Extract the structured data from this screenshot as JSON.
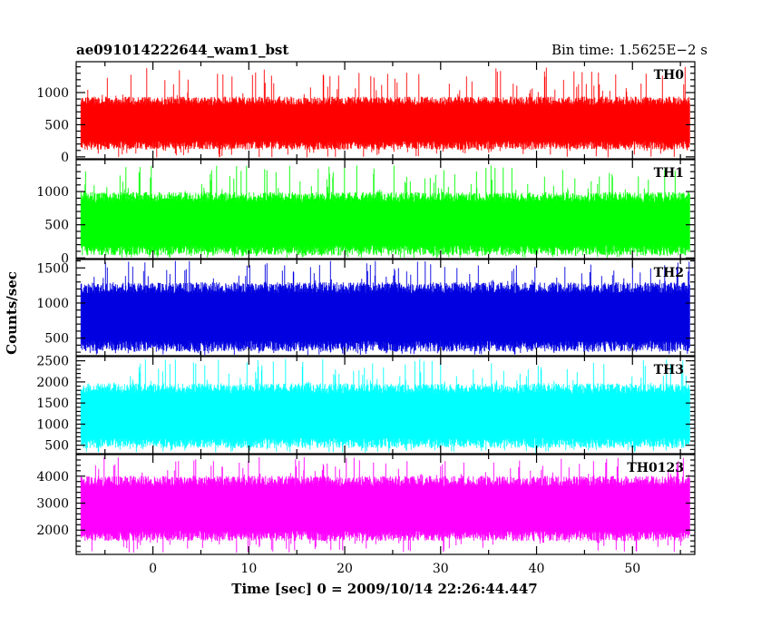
{
  "chart_data": {
    "type": "line",
    "title_left": "ae091014222644_wam1_bst",
    "title_right": "Bin time: 1.5625E−2 s",
    "xlabel": "Time [sec] 0 = 2009/10/14 22:26:44.447",
    "ylabel": "Counts/sec",
    "xlim": [
      -8,
      56.5
    ],
    "x_ticks": [
      0,
      10,
      20,
      30,
      40,
      50
    ],
    "data_x_range": [
      -7.5,
      56
    ],
    "grid": false,
    "panels": [
      {
        "name": "TH0",
        "color": "#ff0000",
        "ylim": [
          -30,
          1480
        ],
        "y_ticks": [
          0,
          500,
          1000
        ],
        "typical_range": [
          150,
          900
        ],
        "peak_max": 1400
      },
      {
        "name": "TH1",
        "color": "#00ff00",
        "ylim": [
          -10,
          1480
        ],
        "y_ticks": [
          0,
          500,
          1000
        ],
        "typical_range": [
          80,
          950
        ],
        "peak_max": 1400
      },
      {
        "name": "TH2",
        "color": "#0000e0",
        "ylim": [
          250,
          1620
        ],
        "y_ticks": [
          500,
          1000,
          1500
        ],
        "typical_range": [
          350,
          1250
        ],
        "peak_max": 1600
      },
      {
        "name": "TH3",
        "color": "#00ffff",
        "ylim": [
          300,
          2600
        ],
        "y_ticks": [
          500,
          1000,
          1500,
          2000,
          2500
        ],
        "typical_range": [
          500,
          1900
        ],
        "peak_max": 2550
      },
      {
        "name": "TH0123",
        "color": "#ff00ff",
        "ylim": [
          1100,
          4800
        ],
        "y_ticks": [
          2000,
          3000,
          4000
        ],
        "typical_range": [
          1700,
          3900
        ],
        "peak_max": 4700
      }
    ]
  }
}
